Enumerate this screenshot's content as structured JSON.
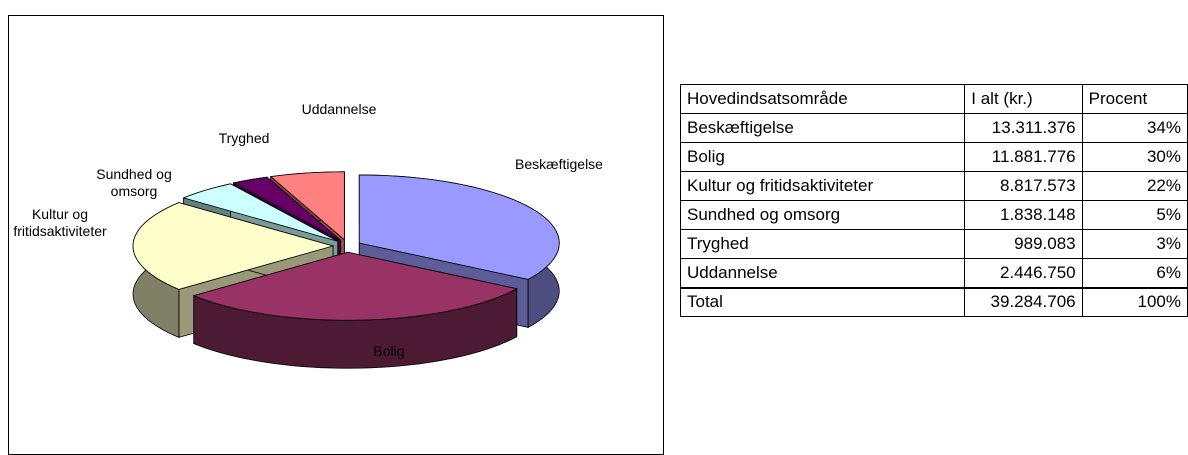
{
  "chart_data": {
    "type": "pie",
    "categories": [
      "Beskæftigelse",
      "Bolig",
      "Kultur og fritidsaktiviteter",
      "Sundhed og omsorg",
      "Tryghed",
      "Uddannelse"
    ],
    "values": [
      34,
      30,
      22,
      5,
      3,
      6
    ],
    "colors": [
      "#9999ff",
      "#993366",
      "#ffffcc",
      "#ccffff",
      "#660066",
      "#ff8080"
    ]
  },
  "table": {
    "header": [
      "Hovedindsatsområde",
      "I alt (kr.)",
      "Procent"
    ],
    "rows": [
      [
        "Beskæftigelse",
        "13.311.376",
        "34%"
      ],
      [
        "Bolig",
        "11.881.776",
        "30%"
      ],
      [
        "Kultur og fritidsaktiviteter",
        "8.817.573",
        "22%"
      ],
      [
        "Sundhed og omsorg",
        "1.838.148",
        "5%"
      ],
      [
        "Tryghed",
        "989.083",
        "3%"
      ],
      [
        "Uddannelse",
        "2.446.750",
        "6%"
      ]
    ],
    "total": [
      "Total",
      "39.284.706",
      "100%"
    ]
  }
}
